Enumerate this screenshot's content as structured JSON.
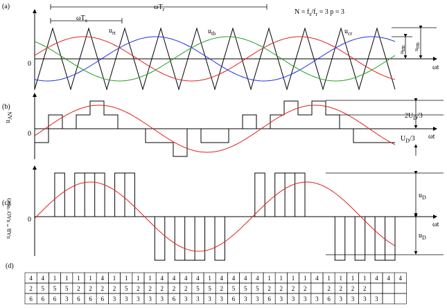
{
  "panels": {
    "a": {
      "label": "(a)",
      "period_carrier": "ωT",
      "period_carrier_sub": "s",
      "period_ref": "ωT",
      "period_ref_sub": "r",
      "params": "N = f",
      "params_sub1": "s",
      "params_mid": "/f",
      "params_sub2": "r",
      "params_end": " = 3   p = 3",
      "ua": "u",
      "ua_sub": "rt",
      "ub": "u",
      "ub_sub": "tb",
      "uc": "u",
      "uc_sub": "cr",
      "utm": "u",
      "utm_sub": "tm",
      "urm": "u",
      "urm_sub": "rm",
      "zero": "0",
      "axis": "ωt"
    },
    "b": {
      "label": "(b)",
      "ylabel": "u",
      "ylabel_sub": "AN",
      "zero": "0",
      "level_high": "2U",
      "level_high_sub": "D",
      "level_high_tail": "/3",
      "level_low": "U",
      "level_low_sub": "D",
      "level_low_tail": "/3",
      "axis": "ωt"
    },
    "c": {
      "label": "(c)",
      "ylabel": "u",
      "ylabel_sub": "AB",
      "ylabel_tail": " = u",
      "ylabel_sub2": "AO",
      "ylabel_tail2": "−u",
      "ylabel_sub3": "BO",
      "zero": "0",
      "ud_top": "u",
      "ud_top_sub": "D",
      "ud_bot": "u",
      "ud_bot_sub": "D",
      "axis": "ωt"
    },
    "d": {
      "label": "(d)",
      "rows": [
        [
          "4",
          "4",
          "1",
          "1",
          "1",
          "1",
          "4",
          "1",
          "1",
          "1",
          "1",
          "4",
          "4",
          "4",
          "4",
          "1",
          "4",
          "4",
          "4",
          "4",
          "1",
          "1",
          "1",
          "1",
          "4",
          "1",
          "1",
          "1",
          "1",
          "4",
          "4",
          "4"
        ],
        [
          "2",
          "5",
          "5",
          "5",
          "2",
          "2",
          "2",
          "2",
          "5",
          "2",
          "2",
          "2",
          "2",
          "2",
          "5",
          "5",
          "2",
          "5",
          "5",
          "5",
          "2",
          "2",
          "2",
          "2",
          "",
          "2",
          "2",
          "2",
          "2"
        ],
        [
          "6",
          "6",
          "6",
          "3",
          "6",
          "6",
          "6",
          "3",
          "3",
          "3",
          "3",
          "3",
          "6",
          "3",
          "3",
          "3",
          "3",
          "6",
          "3",
          "3",
          "6",
          "3",
          "3",
          "3",
          "3",
          "6",
          "3",
          "3",
          "3",
          "3"
        ]
      ]
    }
  }
}
